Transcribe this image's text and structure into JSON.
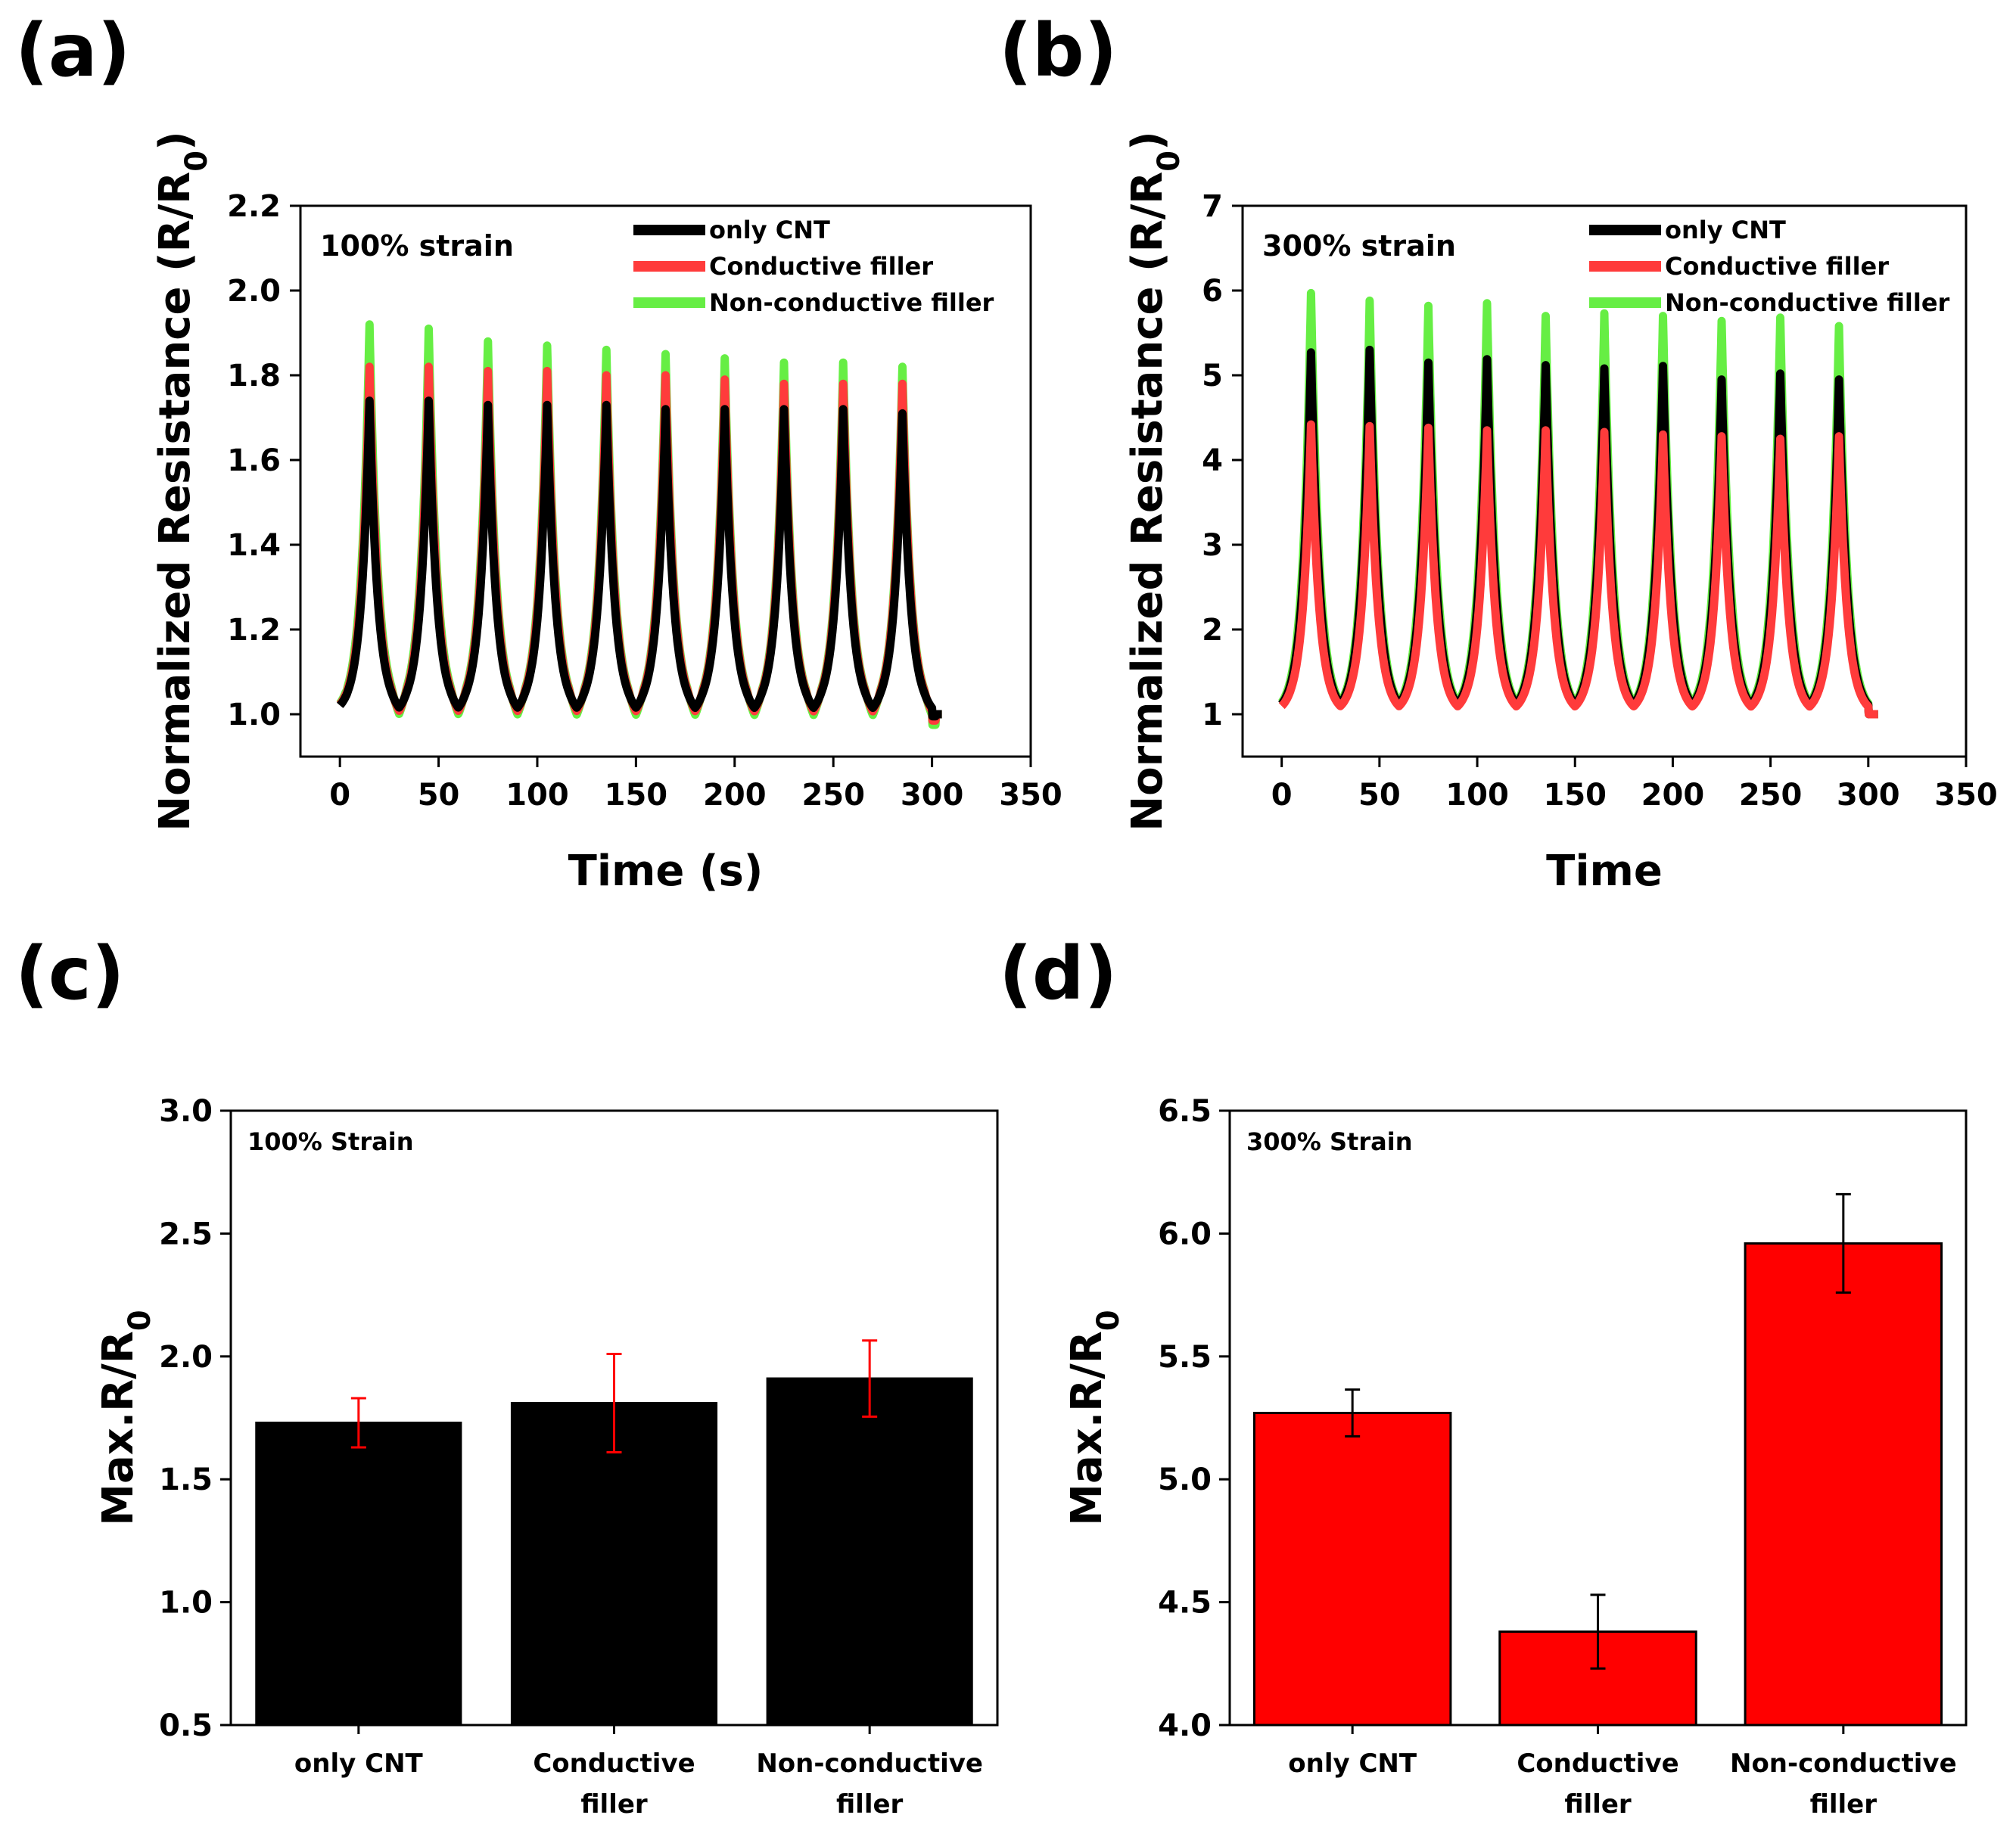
{
  "chart_data": [
    {
      "id": "a",
      "panel_label": "(a)",
      "type": "line",
      "annotation": "100% strain",
      "xlabel": "Time (s)",
      "ylabel": "Normalized Resistance (R/R",
      "ylabel_sub": "0",
      "ylabel_end": ")",
      "xlim": [
        -20,
        350
      ],
      "ylim": [
        0.9,
        2.2
      ],
      "xticks": [
        0,
        50,
        100,
        150,
        200,
        250,
        300,
        350
      ],
      "xtick_labels": [
        "0",
        "50",
        "100",
        "150",
        "200",
        "250",
        "300",
        "350"
      ],
      "yticks": [
        1.0,
        1.2,
        1.4,
        1.6,
        1.8,
        2.0,
        2.2
      ],
      "ytick_labels": [
        "1.0",
        "1.2",
        "1.4",
        "1.6",
        "1.8",
        "2.0",
        "2.2"
      ],
      "time_range": [
        0,
        305
      ],
      "cycle_peak_times": [
        15,
        45,
        75,
        105,
        135,
        165,
        195,
        225,
        255,
        285
      ],
      "series": [
        {
          "name": "Non-conductive filler",
          "color": "#66ee44",
          "baseline": 1.0,
          "trough_min": 0.975,
          "peaks": [
            1.92,
            1.91,
            1.88,
            1.87,
            1.86,
            1.85,
            1.84,
            1.83,
            1.83,
            1.82
          ]
        },
        {
          "name": "Conductive filler",
          "color": "#ff3b3b",
          "baseline": 1.0,
          "trough_min": 0.985,
          "peaks": [
            1.82,
            1.82,
            1.81,
            1.81,
            1.8,
            1.8,
            1.79,
            1.78,
            1.78,
            1.78
          ]
        },
        {
          "name": "only CNT",
          "color": "#000000",
          "baseline": 1.0,
          "trough_min": 0.995,
          "peaks": [
            1.74,
            1.74,
            1.73,
            1.73,
            1.73,
            1.72,
            1.72,
            1.72,
            1.72,
            1.71
          ]
        }
      ],
      "legend_order": [
        "only CNT",
        "Conductive filler",
        "Non-conductive filler"
      ],
      "legend_colors": [
        "#000000",
        "#ff3b3b",
        "#66ee44"
      ],
      "legend_position": "top-right"
    },
    {
      "id": "b",
      "panel_label": "(b)",
      "type": "line",
      "annotation": "300% strain",
      "xlabel": "Time",
      "ylabel": "Normalized Resistance (R/R",
      "ylabel_sub": "0",
      "ylabel_end": ")",
      "xlim": [
        -20,
        350
      ],
      "ylim": [
        0.5,
        7
      ],
      "xticks": [
        0,
        50,
        100,
        150,
        200,
        250,
        300,
        350
      ],
      "xtick_labels": [
        "0",
        "50",
        "100",
        "150",
        "200",
        "250",
        "300",
        "350"
      ],
      "yticks": [
        1,
        2,
        3,
        4,
        5,
        6,
        7
      ],
      "ytick_labels": [
        "1",
        "2",
        "3",
        "4",
        "5",
        "6",
        "7"
      ],
      "time_range": [
        0,
        305
      ],
      "cycle_peak_times": [
        15,
        45,
        75,
        105,
        135,
        165,
        195,
        225,
        255,
        285
      ],
      "series": [
        {
          "name": "Non-conductive filler",
          "color": "#66ee44",
          "baseline": 1.0,
          "trough_min": 1.0,
          "peaks": [
            5.97,
            5.88,
            5.82,
            5.85,
            5.7,
            5.73,
            5.7,
            5.64,
            5.68,
            5.58
          ]
        },
        {
          "name": "only CNT",
          "color": "#000000",
          "baseline": 1.0,
          "trough_min": 1.0,
          "peaks": [
            5.27,
            5.3,
            5.15,
            5.19,
            5.12,
            5.08,
            5.11,
            4.95,
            5.02,
            4.95
          ]
        },
        {
          "name": "Conductive filler",
          "color": "#ff3b3b",
          "baseline": 1.0,
          "trough_min": 1.0,
          "peaks": [
            4.42,
            4.4,
            4.38,
            4.35,
            4.35,
            4.33,
            4.3,
            4.28,
            4.25,
            4.28
          ]
        }
      ],
      "legend_order": [
        "only CNT",
        "Conductive filler",
        "Non-conductive filler"
      ],
      "legend_colors": [
        "#000000",
        "#ff3b3b",
        "#66ee44"
      ],
      "legend_position": "top-right"
    },
    {
      "id": "c",
      "panel_label": "(c)",
      "type": "bar",
      "annotation": "100% Strain",
      "xlabel": "",
      "ylabel": "Max.R/R",
      "ylabel_sub": "0",
      "ylim": [
        0.5,
        3.0
      ],
      "yticks": [
        0.5,
        1.0,
        1.5,
        2.0,
        2.5,
        3.0
      ],
      "ytick_labels": [
        "0.5",
        "1.0",
        "1.5",
        "2.0",
        "2.5",
        "3.0"
      ],
      "categories": [
        [
          "only CNT"
        ],
        [
          "Conductive",
          "filler"
        ],
        [
          "Non-conductive",
          "filler"
        ]
      ],
      "values": [
        1.73,
        1.81,
        1.91
      ],
      "errors": [
        0.1,
        0.2,
        0.155
      ],
      "bar_color": "#000000",
      "error_color": "#ff0000"
    },
    {
      "id": "d",
      "panel_label": "(d)",
      "type": "bar",
      "annotation": "300% Strain",
      "xlabel": "",
      "ylabel": "Max.R/R",
      "ylabel_sub": "0",
      "ylim": [
        4.0,
        6.5
      ],
      "yticks": [
        4.0,
        4.5,
        5.0,
        5.5,
        6.0,
        6.5
      ],
      "ytick_labels": [
        "4.0",
        "4.5",
        "5.0",
        "5.5",
        "6.0",
        "6.5"
      ],
      "categories": [
        [
          "only CNT"
        ],
        [
          "Conductive",
          "filler"
        ],
        [
          "Non-conductive",
          "filler"
        ]
      ],
      "values": [
        5.27,
        4.38,
        5.96
      ],
      "errors": [
        0.095,
        0.15,
        0.2
      ],
      "bar_color": "#ff0000",
      "error_color": "#000000"
    }
  ]
}
